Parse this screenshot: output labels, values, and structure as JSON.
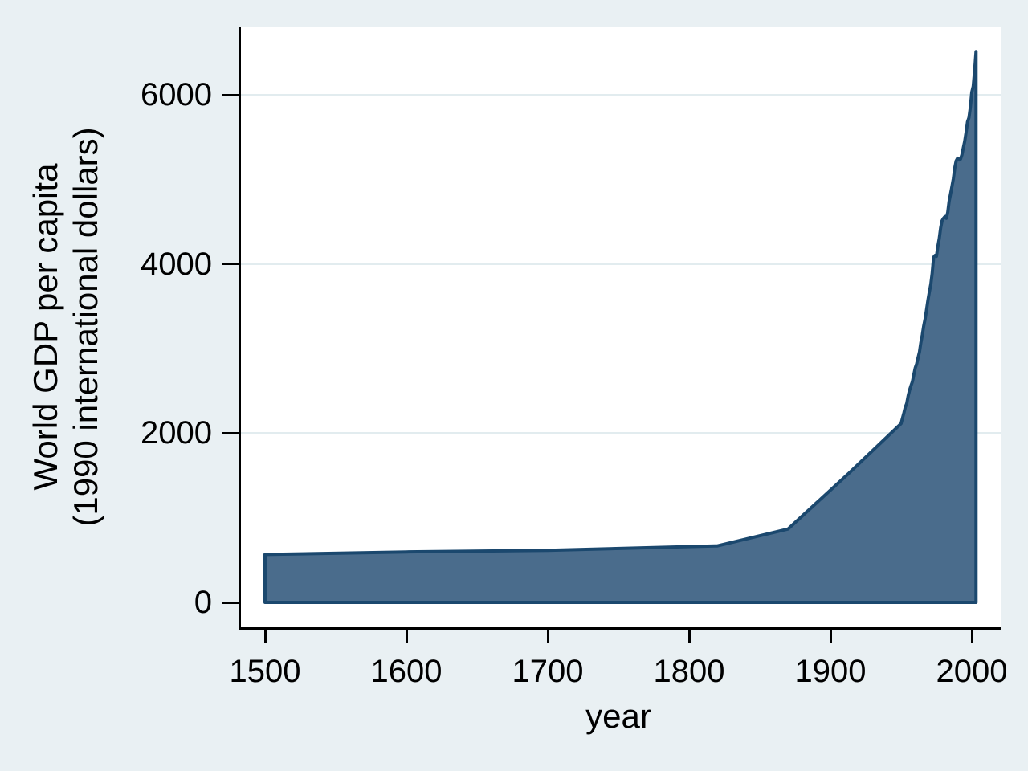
{
  "figure": {
    "background_color": "#e9f0f3",
    "plot_background_color": "#ffffff",
    "grid_color": "#e2ecef",
    "axis_color": "#000000",
    "area_fill_color": "#4a6c8c",
    "area_line_color": "#1b486e"
  },
  "chart_data": {
    "type": "area",
    "title": "",
    "xlabel": "year",
    "ylabel_line1": "World GDP per capita",
    "ylabel_line2": "(1990 international dollars)",
    "x_tick_values": [
      1500,
      1600,
      1700,
      1800,
      1900,
      2000
    ],
    "y_tick_values": [
      0,
      2000,
      4000,
      6000
    ],
    "xlim": [
      1482,
      2021
    ],
    "ylim": [
      0,
      6800
    ],
    "grid": "horizontal gridlines at y ticks",
    "legend": "none",
    "series": [
      {
        "name": "World GDP per capita (1990 international dollars)",
        "points": [
          [
            1500,
            566
          ],
          [
            1600,
            596
          ],
          [
            1700,
            615
          ],
          [
            1820,
            667
          ],
          [
            1870,
            867
          ],
          [
            1913,
            1526
          ],
          [
            1950,
            2114
          ],
          [
            1951,
            2180
          ],
          [
            1952,
            2240
          ],
          [
            1953,
            2310
          ],
          [
            1954,
            2350
          ],
          [
            1955,
            2440
          ],
          [
            1956,
            2510
          ],
          [
            1957,
            2560
          ],
          [
            1958,
            2610
          ],
          [
            1959,
            2690
          ],
          [
            1960,
            2770
          ],
          [
            1961,
            2820
          ],
          [
            1962,
            2890
          ],
          [
            1963,
            2960
          ],
          [
            1964,
            3070
          ],
          [
            1965,
            3160
          ],
          [
            1966,
            3270
          ],
          [
            1967,
            3350
          ],
          [
            1968,
            3460
          ],
          [
            1969,
            3570
          ],
          [
            1970,
            3670
          ],
          [
            1971,
            3760
          ],
          [
            1972,
            3890
          ],
          [
            1973,
            4080
          ],
          [
            1974,
            4100
          ],
          [
            1975,
            4090
          ],
          [
            1976,
            4210
          ],
          [
            1977,
            4300
          ],
          [
            1978,
            4430
          ],
          [
            1979,
            4510
          ],
          [
            1980,
            4540
          ],
          [
            1981,
            4560
          ],
          [
            1982,
            4540
          ],
          [
            1983,
            4610
          ],
          [
            1984,
            4740
          ],
          [
            1985,
            4830
          ],
          [
            1986,
            4920
          ],
          [
            1987,
            5010
          ],
          [
            1988,
            5140
          ],
          [
            1989,
            5220
          ],
          [
            1990,
            5250
          ],
          [
            1991,
            5230
          ],
          [
            1992,
            5240
          ],
          [
            1993,
            5290
          ],
          [
            1994,
            5370
          ],
          [
            1995,
            5450
          ],
          [
            1996,
            5560
          ],
          [
            1997,
            5680
          ],
          [
            1998,
            5730
          ],
          [
            1999,
            5850
          ],
          [
            2000,
            6030
          ],
          [
            2001,
            6100
          ],
          [
            2002,
            6280
          ],
          [
            2003,
            6510
          ]
        ]
      }
    ]
  }
}
